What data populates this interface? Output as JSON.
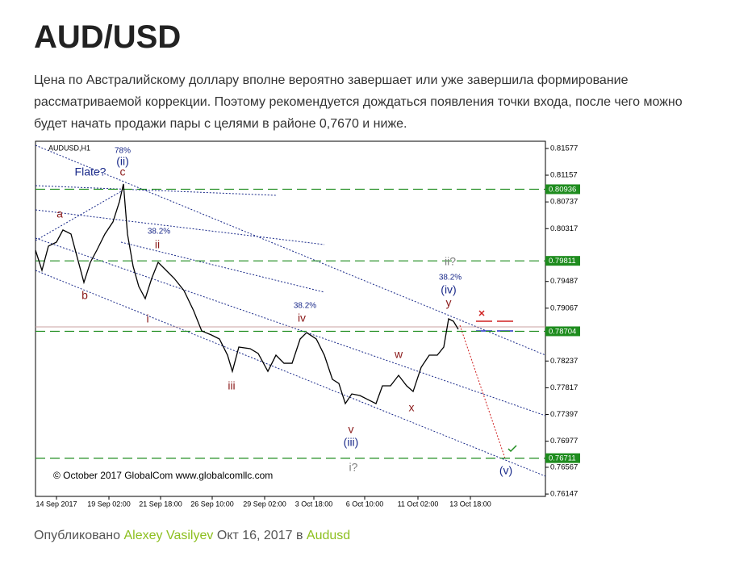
{
  "header": {
    "title": "AUD/USD"
  },
  "body": {
    "paragraph": "Цена по Австралийскому доллару вполне вероятно завершает или уже завершила формирование рассматриваемой коррекции. Поэтому рекомендуется дождаться появления точки входа, после чего можно будет начать продажи пары с целями в районе 0,7670 и ниже."
  },
  "chart_data": {
    "type": "line",
    "series": [
      {
        "name": "AUDUSD,H1",
        "color": "#000000",
        "x": [
          0,
          8,
          16,
          26,
          34,
          44,
          52,
          60,
          68,
          76,
          86,
          96,
          104,
          109,
          114,
          121,
          128,
          136,
          144,
          152,
          162,
          172,
          184,
          196,
          206,
          218,
          228,
          238,
          244,
          252,
          266,
          276,
          288,
          298,
          308,
          318,
          328,
          336,
          348,
          358,
          368,
          376,
          384,
          392,
          402,
          412,
          422,
          430,
          440,
          450,
          460,
          468,
          478,
          488,
          498,
          506,
          512,
          518,
          524
        ],
        "values": [
          0.79978,
          0.79661,
          0.80042,
          0.80105,
          0.80296,
          0.80232,
          0.79852,
          0.79471,
          0.79788,
          0.79978,
          0.80232,
          0.80423,
          0.8074,
          0.81019,
          0.80232,
          0.79725,
          0.79408,
          0.79217,
          0.79534,
          0.79788,
          0.79661,
          0.79534,
          0.79344,
          0.79027,
          0.7871,
          0.78646,
          0.78583,
          0.78329,
          0.78075,
          0.78456,
          0.78431,
          0.78355,
          0.78075,
          0.78329,
          0.78202,
          0.78202,
          0.78583,
          0.78684,
          0.78583,
          0.78329,
          0.77949,
          0.77885,
          0.77568,
          0.7772,
          0.77695,
          0.77631,
          0.77568,
          0.77847,
          0.77847,
          0.78012,
          0.77847,
          0.77758,
          0.78139,
          0.78329,
          0.78329,
          0.78456,
          0.789,
          0.78862,
          0.78735
        ]
      }
    ],
    "xlim": [
      0,
      632
    ],
    "xticks": [
      {
        "value": 26,
        "label": "14 Sep 2017"
      },
      {
        "value": 91,
        "label": "19 Sep 02:00"
      },
      {
        "value": 155,
        "label": "21 Sep 18:00"
      },
      {
        "value": 219,
        "label": "26 Sep 10:00"
      },
      {
        "value": 284,
        "label": "29 Sep 02:00"
      },
      {
        "value": 345,
        "label": "3 Oct 18:00"
      },
      {
        "value": 408,
        "label": "6 Oct 10:00"
      },
      {
        "value": 474,
        "label": "11 Oct 02:00"
      },
      {
        "value": 539,
        "label": "13 Oct 18:00"
      }
    ],
    "ylim": [
      0.7611,
      0.8169
    ],
    "yticks": [
      0.81577,
      0.81157,
      0.80737,
      0.80317,
      0.79487,
      0.79067,
      0.78237,
      0.77817,
      0.77397,
      0.76977,
      0.76567,
      0.76147
    ],
    "levels": [
      0.80936,
      0.79811,
      0.78704,
      0.76711
    ],
    "level_color": "#1e8c1e",
    "annotations": [
      {
        "text": "78%",
        "color": "#1a2a8a"
      },
      {
        "text": "(ii)",
        "color": "#1a2a8a"
      },
      {
        "text": "Flate?",
        "color": "#1a2a8a"
      },
      {
        "text": "c",
        "color": "#8b1a1a"
      },
      {
        "text": "a",
        "color": "#8b1a1a"
      },
      {
        "text": "b",
        "color": "#8b1a1a"
      },
      {
        "text": "38.2%",
        "color": "#1a2a8a"
      },
      {
        "text": "ii",
        "color": "#8b1a1a"
      },
      {
        "text": "i",
        "color": "#8b1a1a"
      },
      {
        "text": "iii",
        "color": "#8b1a1a"
      },
      {
        "text": "38.2%",
        "color": "#1a2a8a"
      },
      {
        "text": "iv",
        "color": "#8b1a1a"
      },
      {
        "text": "v",
        "color": "#8b1a1a"
      },
      {
        "text": "(iii)",
        "color": "#1a2a8a"
      },
      {
        "text": "i?",
        "color": "#808080"
      },
      {
        "text": "w",
        "color": "#8b1a1a"
      },
      {
        "text": "x",
        "color": "#8b1a1a"
      },
      {
        "text": "ii?",
        "color": "#808080"
      },
      {
        "text": "38.2%",
        "color": "#1a2a8a"
      },
      {
        "text": "(iv)",
        "color": "#1a2a8a"
      },
      {
        "text": "y",
        "color": "#8b1a1a"
      },
      {
        "text": "(v)",
        "color": "#1a2a8a"
      }
    ],
    "copyright": "© October 2017 GlobalCom www.globalcomllc.com"
  },
  "footer": {
    "prefix": "Опубликовано",
    "author": "Alexey Vasilyev",
    "middle": "Окт 16, 2017 в",
    "category": "Audusd"
  }
}
